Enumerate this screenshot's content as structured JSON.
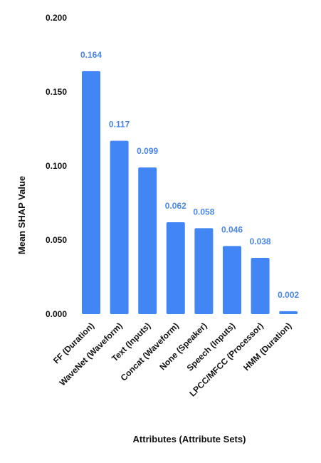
{
  "chart_data": {
    "type": "bar",
    "title": "",
    "xlabel": "Attributes (Attribute Sets)",
    "ylabel": "Mean SHAP Value",
    "categories": [
      "FF (Duration)",
      "WaveNet (Waveform)",
      "Text (Inputs)",
      "Concat (Waveform)",
      "None (Speaker)",
      "Speech (Inputs)",
      "LPCC/MFCC (Processor)",
      "HMM (Duration)"
    ],
    "values": [
      0.164,
      0.117,
      0.099,
      0.062,
      0.058,
      0.046,
      0.038,
      0.002
    ],
    "value_labels": [
      "0.164",
      "0.117",
      "0.099",
      "0.062",
      "0.058",
      "0.046",
      "0.038",
      "0.002"
    ],
    "yticks": [
      0.0,
      0.05,
      0.1,
      0.15,
      0.2
    ],
    "ytick_labels": [
      "0.000",
      "0.050",
      "0.100",
      "0.150",
      "0.200"
    ],
    "ylim": [
      0,
      0.2
    ],
    "grid": false,
    "legend": "none",
    "bar_color": "#4285f4",
    "label_color": "#4a86e8"
  }
}
